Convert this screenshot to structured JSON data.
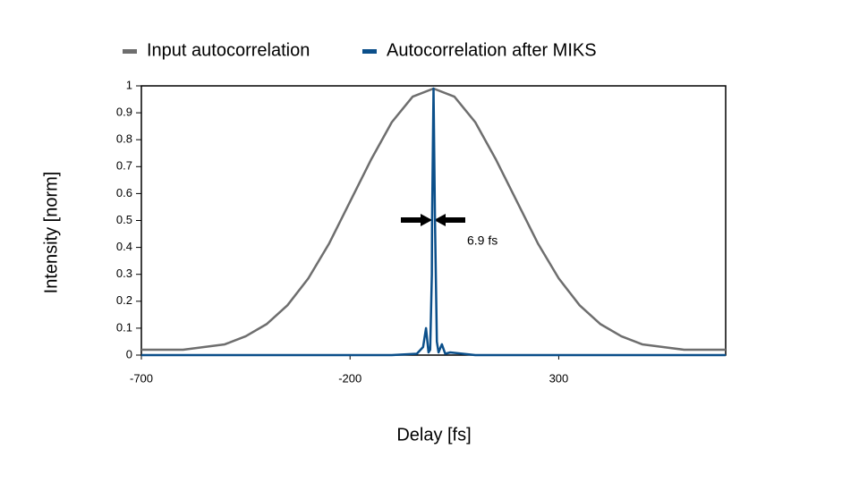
{
  "chart_data": {
    "type": "line",
    "x_label": "Delay [fs]",
    "y_label": "Intensity [norm]",
    "annotation": "6.9 fs",
    "xlim": [
      -700,
      700
    ],
    "xticks": [
      -700,
      -200,
      300
    ],
    "ylim": [
      0,
      1
    ],
    "yticks": [
      0,
      0.1,
      0.2,
      0.3,
      0.4,
      0.5,
      0.6,
      0.7,
      0.8,
      0.9,
      1
    ],
    "legend": "top",
    "series": [
      {
        "name": "Input autocorrelation",
        "color": "#6e6e6e",
        "x": [
          -700,
          -650,
          -600,
          -550,
          -500,
          -450,
          -400,
          -350,
          -300,
          -250,
          -200,
          -150,
          -100,
          -50,
          0,
          50,
          100,
          150,
          200,
          250,
          300,
          350,
          400,
          450,
          500,
          550,
          600,
          650,
          700
        ],
        "values": [
          0.02,
          0.02,
          0.02,
          0.03,
          0.04,
          0.07,
          0.115,
          0.185,
          0.285,
          0.415,
          0.57,
          0.725,
          0.865,
          0.96,
          0.99,
          0.96,
          0.865,
          0.725,
          0.57,
          0.415,
          0.285,
          0.185,
          0.115,
          0.07,
          0.04,
          0.03,
          0.02,
          0.02,
          0.02
        ]
      },
      {
        "name": "Autocorrelation after MIKS",
        "color": "#0b4f8a",
        "x": [
          -700,
          -100,
          -40,
          -25,
          -18,
          -12,
          -8,
          -4,
          -3.5,
          0,
          3.5,
          8,
          12,
          20,
          28,
          40,
          100,
          700
        ],
        "values": [
          0,
          0,
          0.005,
          0.03,
          0.1,
          0.01,
          0.02,
          0.3,
          0.5,
          0.99,
          0.5,
          0.05,
          0.01,
          0.04,
          0.005,
          0.01,
          0,
          0
        ]
      }
    ]
  }
}
